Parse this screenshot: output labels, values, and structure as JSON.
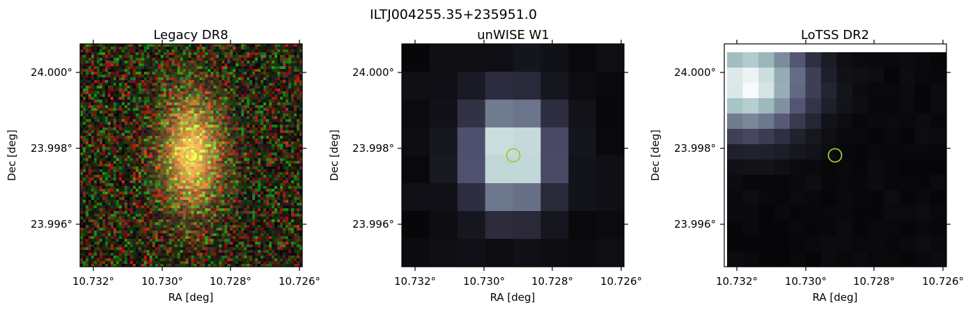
{
  "figure": {
    "suptitle": "ILTJ004255.35+235951.0"
  },
  "panels": [
    {
      "title": "Legacy DR8",
      "xlabel": "RA [deg]",
      "ylabel": "Dec [deg]",
      "xticks": [
        "10.732°",
        "10.730°",
        "10.728°",
        "10.726°"
      ],
      "yticks": [
        "24.000°",
        "23.998°",
        "23.996°"
      ],
      "image": "optical color cutout (noisy RGB background, elongated yellow-orange galaxy)",
      "marker_color": "#9acd32"
    },
    {
      "title": "unWISE W1",
      "xlabel": "RA [deg]",
      "ylabel": "Dec [deg]",
      "xticks": [
        "10.732°",
        "10.730°",
        "10.728°",
        "10.726°"
      ],
      "yticks": [
        "24.000°",
        "23.998°",
        "23.996°"
      ],
      "image": "pixelated infrared cutout, bone colormap",
      "marker_color": "#9acd32"
    },
    {
      "title": "LoTSS DR2",
      "xlabel": "RA [deg]",
      "ylabel": "Dec [deg]",
      "xticks": [
        "10.732°",
        "10.730°",
        "10.728°",
        "10.726°"
      ],
      "yticks": [
        "24.000°",
        "23.998°",
        "23.996°"
      ],
      "image": "pixelated radio cutout, bone colormap, bright emission top-left",
      "marker_color": "#9acd32"
    }
  ]
}
